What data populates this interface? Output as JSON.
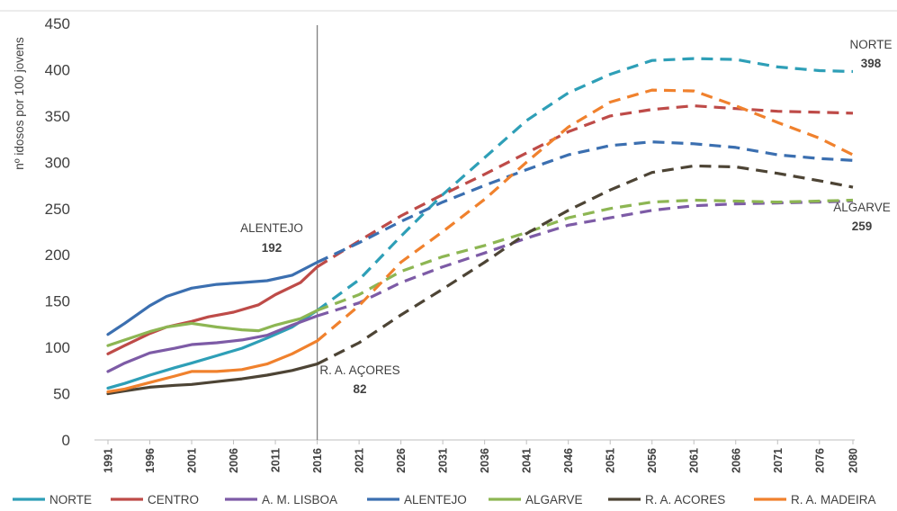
{
  "chart_data": {
    "type": "line",
    "title": "",
    "ylabel": "nº idosos por 100 jovens",
    "xlabel": "",
    "ylim": [
      0,
      450
    ],
    "yticks": [
      0,
      50,
      100,
      150,
      200,
      250,
      300,
      350,
      400,
      450
    ],
    "xlim": [
      1991,
      2080
    ],
    "xticks": [
      "1991",
      "1996",
      "2001",
      "2006",
      "2011",
      "2016",
      "2021",
      "2026",
      "2031",
      "2036",
      "2041",
      "2046",
      "2051",
      "2056",
      "2061",
      "2066",
      "2071",
      "2076",
      "2080"
    ],
    "projection_start": 2016,
    "grid": false,
    "legend_position": "bottom",
    "series": [
      {
        "name": "NORTE",
        "color": "#2e9fb7",
        "observed": [
          [
            1991,
            56
          ],
          [
            1993,
            61
          ],
          [
            1996,
            70
          ],
          [
            1999,
            78
          ],
          [
            2001,
            83
          ],
          [
            2004,
            91
          ],
          [
            2007,
            99
          ],
          [
            2010,
            110
          ],
          [
            2013,
            122
          ],
          [
            2016,
            140
          ]
        ],
        "projected": [
          [
            2016,
            140
          ],
          [
            2021,
            173
          ],
          [
            2026,
            220
          ],
          [
            2031,
            265
          ],
          [
            2036,
            305
          ],
          [
            2041,
            345
          ],
          [
            2046,
            375
          ],
          [
            2051,
            395
          ],
          [
            2056,
            410
          ],
          [
            2061,
            412
          ],
          [
            2066,
            411
          ],
          [
            2071,
            403
          ],
          [
            2076,
            399
          ],
          [
            2080,
            398
          ]
        ]
      },
      {
        "name": "CENTRO",
        "color": "#be4b48",
        "observed": [
          [
            1991,
            93
          ],
          [
            1993,
            102
          ],
          [
            1996,
            115
          ],
          [
            1998,
            122
          ],
          [
            2001,
            128
          ],
          [
            2003,
            133
          ],
          [
            2006,
            138
          ],
          [
            2009,
            146
          ],
          [
            2011,
            157
          ],
          [
            2014,
            170
          ],
          [
            2016,
            187
          ]
        ],
        "projected": [
          [
            2016,
            187
          ],
          [
            2021,
            215
          ],
          [
            2026,
            242
          ],
          [
            2031,
            265
          ],
          [
            2036,
            287
          ],
          [
            2041,
            310
          ],
          [
            2046,
            333
          ],
          [
            2051,
            350
          ],
          [
            2056,
            357
          ],
          [
            2061,
            361
          ],
          [
            2066,
            358
          ],
          [
            2071,
            355
          ],
          [
            2076,
            354
          ],
          [
            2080,
            353
          ]
        ]
      },
      {
        "name": "A. M. LISBOA",
        "color": "#7d5ba6",
        "observed": [
          [
            1991,
            74
          ],
          [
            1993,
            83
          ],
          [
            1996,
            94
          ],
          [
            1999,
            99
          ],
          [
            2001,
            103
          ],
          [
            2004,
            105
          ],
          [
            2007,
            108
          ],
          [
            2010,
            113
          ],
          [
            2013,
            124
          ],
          [
            2016,
            134
          ]
        ],
        "projected": [
          [
            2016,
            134
          ],
          [
            2021,
            148
          ],
          [
            2026,
            170
          ],
          [
            2031,
            187
          ],
          [
            2036,
            202
          ],
          [
            2041,
            218
          ],
          [
            2046,
            232
          ],
          [
            2051,
            240
          ],
          [
            2056,
            248
          ],
          [
            2061,
            253
          ],
          [
            2066,
            255
          ],
          [
            2071,
            256
          ],
          [
            2076,
            257
          ],
          [
            2080,
            258
          ]
        ]
      },
      {
        "name": "ALENTEJO",
        "color": "#3b6fb0",
        "observed": [
          [
            1991,
            114
          ],
          [
            1993,
            126
          ],
          [
            1996,
            145
          ],
          [
            1998,
            155
          ],
          [
            2001,
            164
          ],
          [
            2004,
            168
          ],
          [
            2007,
            170
          ],
          [
            2010,
            172
          ],
          [
            2013,
            178
          ],
          [
            2016,
            192
          ]
        ],
        "projected": [
          [
            2016,
            192
          ],
          [
            2021,
            213
          ],
          [
            2026,
            236
          ],
          [
            2031,
            257
          ],
          [
            2036,
            275
          ],
          [
            2041,
            292
          ],
          [
            2046,
            308
          ],
          [
            2051,
            318
          ],
          [
            2056,
            322
          ],
          [
            2061,
            320
          ],
          [
            2066,
            316
          ],
          [
            2071,
            308
          ],
          [
            2076,
            304
          ],
          [
            2080,
            302
          ]
        ]
      },
      {
        "name": "ALGARVE",
        "color": "#8db653",
        "observed": [
          [
            1991,
            102
          ],
          [
            1993,
            108
          ],
          [
            1996,
            117
          ],
          [
            1998,
            122
          ],
          [
            2001,
            126
          ],
          [
            2004,
            122
          ],
          [
            2007,
            119
          ],
          [
            2009,
            118
          ],
          [
            2011,
            124
          ],
          [
            2014,
            131
          ],
          [
            2016,
            140
          ]
        ],
        "projected": [
          [
            2016,
            140
          ],
          [
            2021,
            157
          ],
          [
            2026,
            182
          ],
          [
            2031,
            198
          ],
          [
            2036,
            210
          ],
          [
            2041,
            224
          ],
          [
            2046,
            240
          ],
          [
            2051,
            250
          ],
          [
            2056,
            257
          ],
          [
            2061,
            259
          ],
          [
            2066,
            258
          ],
          [
            2071,
            257
          ],
          [
            2076,
            258
          ],
          [
            2080,
            259
          ]
        ]
      },
      {
        "name": "R. A. AÇORES",
        "color": "#4d4435",
        "observed": [
          [
            1991,
            50
          ],
          [
            1993,
            53
          ],
          [
            1996,
            57
          ],
          [
            1999,
            59
          ],
          [
            2001,
            60
          ],
          [
            2004,
            63
          ],
          [
            2007,
            66
          ],
          [
            2010,
            70
          ],
          [
            2013,
            75
          ],
          [
            2016,
            82
          ]
        ],
        "projected": [
          [
            2016,
            82
          ],
          [
            2021,
            105
          ],
          [
            2026,
            135
          ],
          [
            2031,
            163
          ],
          [
            2036,
            192
          ],
          [
            2041,
            223
          ],
          [
            2046,
            248
          ],
          [
            2051,
            270
          ],
          [
            2056,
            289
          ],
          [
            2061,
            296
          ],
          [
            2066,
            295
          ],
          [
            2071,
            288
          ],
          [
            2076,
            280
          ],
          [
            2080,
            273
          ]
        ]
      },
      {
        "name": "R. A. MADEIRA",
        "color": "#f0812d",
        "observed": [
          [
            1991,
            52
          ],
          [
            1993,
            55
          ],
          [
            1996,
            62
          ],
          [
            1999,
            69
          ],
          [
            2001,
            74
          ],
          [
            2004,
            74
          ],
          [
            2007,
            76
          ],
          [
            2010,
            82
          ],
          [
            2013,
            93
          ],
          [
            2016,
            107
          ]
        ],
        "projected": [
          [
            2016,
            107
          ],
          [
            2021,
            145
          ],
          [
            2026,
            192
          ],
          [
            2031,
            225
          ],
          [
            2036,
            260
          ],
          [
            2041,
            300
          ],
          [
            2046,
            338
          ],
          [
            2051,
            365
          ],
          [
            2056,
            378
          ],
          [
            2061,
            377
          ],
          [
            2066,
            361
          ],
          [
            2071,
            343
          ],
          [
            2076,
            326
          ],
          [
            2080,
            308
          ]
        ]
      }
    ],
    "annotations": [
      {
        "label": "ALENTEJO",
        "value": "192"
      },
      {
        "label": "R. A. AÇORES",
        "value": "82"
      },
      {
        "label": "NORTE",
        "value": "398"
      },
      {
        "label": "ALGARVE",
        "value": "259"
      }
    ],
    "legend": [
      {
        "label": "NORTE",
        "color": "#2e9fb7"
      },
      {
        "label": "CENTRO",
        "color": "#be4b48"
      },
      {
        "label": "A. M. LISBOA",
        "color": "#7d5ba6"
      },
      {
        "label": "ALENTEJO",
        "color": "#3b6fb0"
      },
      {
        "label": "ALGARVE",
        "color": "#8db653"
      },
      {
        "label": "R. A. ACORES",
        "color": "#4d4435"
      },
      {
        "label": "R. A. MADEIRA",
        "color": "#f0812d"
      }
    ]
  }
}
